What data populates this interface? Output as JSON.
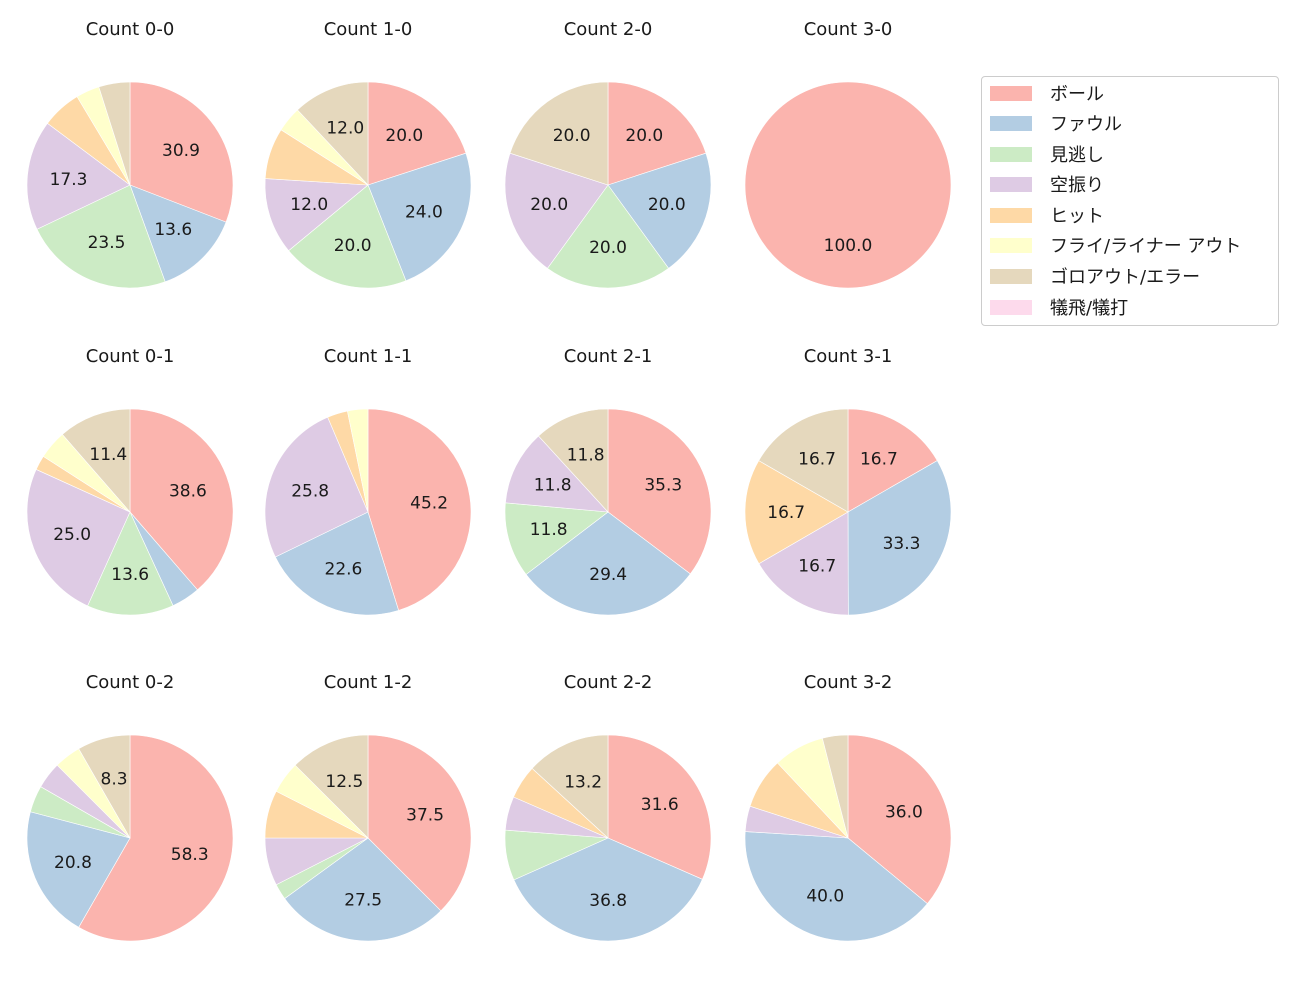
{
  "chart_data": {
    "type": "pie",
    "layout": {
      "rows": 3,
      "cols": 4,
      "legend_position": "upper right"
    },
    "categories": [
      "ボール",
      "ファウル",
      "見逃し",
      "空振り",
      "ヒット",
      "フライ/ライナー アウト",
      "ゴロアウト/エラー",
      "犠飛/犠打"
    ],
    "colors": [
      "#fbb4ae",
      "#b3cde3",
      "#ccebc5",
      "#decbe4",
      "#fed9a6",
      "#ffffcc",
      "#e5d8bd",
      "#fddaec"
    ],
    "label_threshold_note": "Percent labels shown only for slices >= ~8%",
    "subplots": [
      {
        "title": "Count 0-0",
        "values": [
          30.9,
          13.6,
          23.5,
          17.3,
          6.2,
          3.7,
          4.9,
          0
        ],
        "labels": [
          "30.9",
          "13.6",
          "23.5",
          "17.3",
          "",
          "",
          "",
          ""
        ]
      },
      {
        "title": "Count 1-0",
        "values": [
          20.0,
          24.0,
          20.0,
          12.0,
          8.0,
          4.0,
          12.0,
          0
        ],
        "labels": [
          "20.0",
          "24.0",
          "20.0",
          "12.0",
          "",
          "",
          "12.0",
          ""
        ]
      },
      {
        "title": "Count 2-0",
        "values": [
          20.0,
          20.0,
          20.0,
          20.0,
          0,
          0,
          20.0,
          0
        ],
        "labels": [
          "20.0",
          "20.0",
          "20.0",
          "20.0",
          "",
          "",
          "20.0",
          ""
        ]
      },
      {
        "title": "Count 3-0",
        "values": [
          100.0,
          0,
          0,
          0,
          0,
          0,
          0,
          0
        ],
        "labels": [
          "100.0",
          "",
          "",
          "",
          "",
          "",
          "",
          ""
        ]
      },
      {
        "title": "Count 0-1",
        "values": [
          38.6,
          4.5,
          13.6,
          25.0,
          2.3,
          4.5,
          11.4,
          0
        ],
        "labels": [
          "38.6",
          "",
          "13.6",
          "25.0",
          "",
          "",
          "11.4",
          ""
        ]
      },
      {
        "title": "Count 1-1",
        "values": [
          45.2,
          22.6,
          0,
          25.8,
          3.2,
          3.2,
          0,
          0
        ],
        "labels": [
          "45.2",
          "22.6",
          "",
          "25.8",
          "",
          "",
          "",
          ""
        ]
      },
      {
        "title": "Count 2-1",
        "values": [
          35.3,
          29.4,
          11.8,
          11.8,
          0,
          0,
          11.8,
          0
        ],
        "labels": [
          "35.3",
          "29.4",
          "11.8",
          "11.8",
          "",
          "",
          "11.8",
          ""
        ]
      },
      {
        "title": "Count 3-1",
        "values": [
          16.7,
          33.3,
          0,
          16.7,
          16.7,
          0,
          16.7,
          0
        ],
        "labels": [
          "16.7",
          "33.3",
          "",
          "16.7",
          "16.7",
          "",
          "16.7",
          ""
        ]
      },
      {
        "title": "Count 0-2",
        "values": [
          58.3,
          20.8,
          4.2,
          4.2,
          0,
          4.2,
          8.3,
          0
        ],
        "labels": [
          "58.3",
          "20.8",
          "",
          "",
          "",
          "",
          "8.3",
          ""
        ]
      },
      {
        "title": "Count 1-2",
        "values": [
          37.5,
          27.5,
          2.5,
          7.5,
          7.5,
          5.0,
          12.5,
          0
        ],
        "labels": [
          "37.5",
          "27.5",
          "",
          "",
          "",
          "",
          "12.5",
          ""
        ]
      },
      {
        "title": "Count 2-2",
        "values": [
          31.6,
          36.8,
          7.9,
          5.3,
          5.3,
          0,
          13.2,
          0
        ],
        "labels": [
          "31.6",
          "36.8",
          "",
          "",
          "",
          "",
          "13.2",
          ""
        ]
      },
      {
        "title": "Count 3-2",
        "values": [
          36.0,
          40.0,
          0,
          4.0,
          8.0,
          8.0,
          4.0,
          0
        ],
        "labels": [
          "36.0",
          "40.0",
          "",
          "",
          "",
          "",
          "",
          ""
        ]
      }
    ]
  },
  "legend": {
    "items": [
      {
        "label": "ボール",
        "color": "#fbb4ae"
      },
      {
        "label": "ファウル",
        "color": "#b3cde3"
      },
      {
        "label": "見逃し",
        "color": "#ccebc5"
      },
      {
        "label": "空振り",
        "color": "#decbe4"
      },
      {
        "label": "ヒット",
        "color": "#fed9a6"
      },
      {
        "label": "フライ/ライナー アウト",
        "color": "#ffffcc"
      },
      {
        "label": "ゴロアウト/エラー",
        "color": "#e5d8bd"
      },
      {
        "label": "犠飛/犠打",
        "color": "#fddaec"
      }
    ]
  }
}
